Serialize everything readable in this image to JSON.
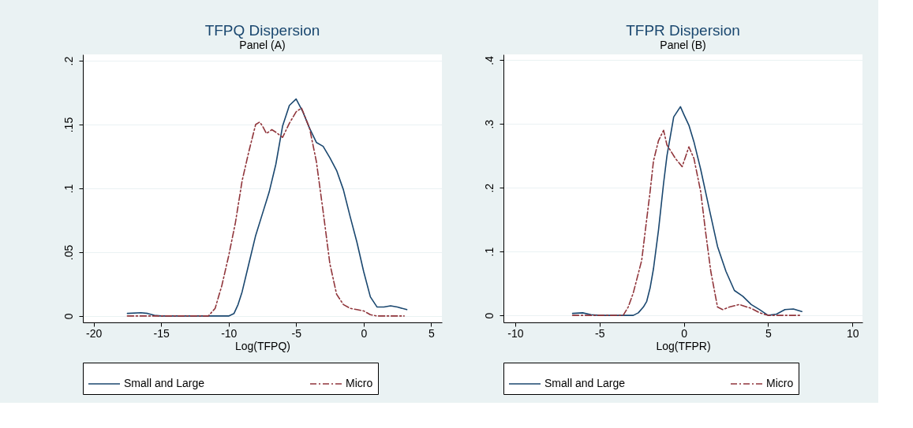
{
  "chart_data": [
    {
      "type": "line",
      "title": "TFPQ Dispersion",
      "subtitle": "Panel (A)",
      "xlabel": "Log(TFPQ)",
      "xlim": [
        -20.8,
        5.8
      ],
      "ylim": [
        -0.005,
        0.205
      ],
      "xticks": [
        -20,
        -15,
        -10,
        -5,
        0,
        5
      ],
      "yticks": [
        0,
        {
          "value": 0.05,
          "label": ".05"
        },
        {
          "value": 0.1,
          "label": ".1"
        },
        {
          "value": 0.15,
          "label": ".15"
        },
        {
          "value": 0.2,
          "label": ".2"
        }
      ],
      "grid": "y",
      "legend": "bottom",
      "series": [
        {
          "name": "Small and Large",
          "color": "#1a476f",
          "line_style": "solid",
          "x": [
            -17.5,
            -16.5,
            -16,
            -15.5,
            -15,
            -10,
            -9.6,
            -9.3,
            -9,
            -8.5,
            -8,
            -7.5,
            -7,
            -6.5,
            -6,
            -5.5,
            -5,
            -4.5,
            -4,
            -3.5,
            -3,
            -2.5,
            -2,
            -1.5,
            -1,
            -0.5,
            0,
            0.5,
            1,
            1.5,
            2,
            2.5,
            3.2
          ],
          "values": [
            0.002,
            0.0026,
            0.002,
            0.0005,
            0,
            0,
            0.002,
            0.009,
            0.019,
            0.041,
            0.063,
            0.08,
            0.097,
            0.119,
            0.149,
            0.165,
            0.17,
            0.16,
            0.147,
            0.136,
            0.133,
            0.124,
            0.114,
            0.099,
            0.078,
            0.058,
            0.035,
            0.015,
            0.007,
            0.007,
            0.008,
            0.007,
            0.005
          ]
        },
        {
          "name": "Micro",
          "color": "#90353b",
          "line_style": "dashed",
          "x": [
            -17.5,
            -11.5,
            -11,
            -10.5,
            -10,
            -9.5,
            -9,
            -8.5,
            -8,
            -7.7,
            -7.5,
            -7.2,
            -6.8,
            -6.5,
            -6,
            -5.5,
            -5,
            -4.6,
            -4,
            -3.5,
            -3,
            -2.5,
            -2,
            -1.5,
            -1,
            -0.5,
            0,
            0.5,
            1,
            3.0
          ],
          "values": [
            0,
            0,
            0.006,
            0.024,
            0.047,
            0.073,
            0.106,
            0.129,
            0.15,
            0.152,
            0.149,
            0.143,
            0.146,
            0.144,
            0.14,
            0.151,
            0.16,
            0.163,
            0.147,
            0.121,
            0.082,
            0.041,
            0.017,
            0.009,
            0.006,
            0.005,
            0.004,
            0.001,
            0,
            0
          ]
        }
      ]
    },
    {
      "type": "line",
      "title": "TFPR Dispersion",
      "subtitle": "Panel (B)",
      "xlabel": "Log(TFPR)",
      "xlim": [
        -10.7,
        10.6
      ],
      "ylim": [
        -0.011,
        0.409
      ],
      "xticks": [
        -10,
        -5,
        0,
        5,
        10
      ],
      "yticks": [
        0,
        {
          "value": 0.1,
          "label": ".1"
        },
        {
          "value": 0.2,
          "label": ".2"
        },
        {
          "value": 0.3,
          "label": ".3"
        },
        {
          "value": 0.4,
          "label": ".4"
        }
      ],
      "grid": "y",
      "legend": "bottom",
      "series": [
        {
          "name": "Small and Large",
          "color": "#1a476f",
          "line_style": "solid",
          "x": [
            -6.6,
            -6,
            -5.5,
            -5,
            -3,
            -2.7,
            -2.4,
            -2.2,
            -2,
            -1.8,
            -1.5,
            -1.2,
            -1,
            -0.6,
            -0.2,
            0,
            0.3,
            0.6,
            1,
            1.5,
            2,
            2.5,
            3,
            3.5,
            4,
            4.5,
            5,
            5.5,
            6,
            6.5,
            7
          ],
          "values": [
            0.003,
            0.004,
            0.001,
            0,
            0,
            0.004,
            0.013,
            0.022,
            0.043,
            0.073,
            0.134,
            0.207,
            0.25,
            0.311,
            0.327,
            0.315,
            0.298,
            0.272,
            0.229,
            0.168,
            0.108,
            0.069,
            0.039,
            0.03,
            0.017,
            0.009,
            0,
            0.002,
            0.009,
            0.01,
            0.006
          ]
        },
        {
          "name": "Micro",
          "color": "#90353b",
          "line_style": "dashed",
          "x": [
            -6.6,
            -3.6,
            -3.3,
            -3,
            -2.5,
            -2.2,
            -2,
            -1.8,
            -1.5,
            -1.2,
            -1,
            -0.5,
            -0.1,
            0.3,
            0.6,
            1,
            1.3,
            1.6,
            2,
            2.3,
            2.7,
            3.3,
            4,
            4.5,
            5,
            7
          ],
          "values": [
            0,
            0,
            0.013,
            0.035,
            0.086,
            0.151,
            0.194,
            0.242,
            0.274,
            0.29,
            0.267,
            0.246,
            0.233,
            0.264,
            0.246,
            0.194,
            0.129,
            0.069,
            0.013,
            0.009,
            0.013,
            0.017,
            0.011,
            0.004,
            0,
            0
          ]
        }
      ]
    }
  ]
}
